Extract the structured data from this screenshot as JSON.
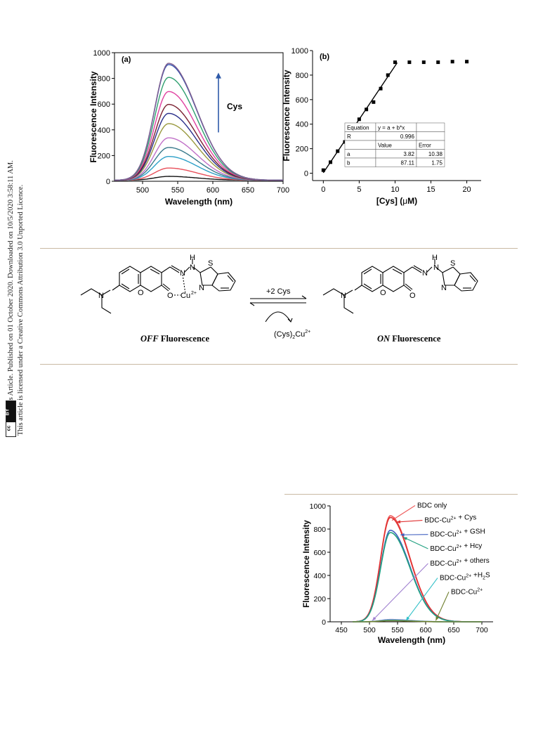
{
  "sidebar": {
    "line1": "Open Access Article. Published on 01 October 2020. Downloaded on 10/5/2020 3:58:11 AM.",
    "line2": "This article is licensed under a Creative Commons Attribution 3.0 Unported Licence.",
    "badge_cc": "cc",
    "badge_by": "BY"
  },
  "scheme": {
    "arrow_top": "+2 Cys",
    "arrow_bottom_main": "(Cys)",
    "arrow_bottom_sub": "2",
    "arrow_bottom_cu": "Cu",
    "arrow_bottom_sup": "2+",
    "off_label_em": "OFF",
    "off_label_rest": " Fluorescence",
    "on_label_em": "ON",
    "on_label_rest": " Fluorescence",
    "left_atoms": {
      "N1": "N",
      "N2": "N",
      "H": "H",
      "O1": "O",
      "O2": "O",
      "Cu": "Cu",
      "Cu_charge": "2+",
      "N3": "N",
      "S": "S",
      "Nring": "N"
    },
    "right_atoms": {
      "N1": "N",
      "N2": "N",
      "H": "H",
      "O1": "O",
      "O2": "O",
      "S": "S",
      "Nring": "N"
    }
  },
  "chart_data": [
    {
      "id": "a",
      "type": "line",
      "panel_label": "(a)",
      "xlabel": "Wavelength (nm)",
      "ylabel": "Fluorescence Intensity",
      "xlim": [
        460,
        700
      ],
      "ylim": [
        0,
        1000
      ],
      "xticks": [
        500,
        550,
        600,
        650,
        700
      ],
      "yticks": [
        0,
        200,
        400,
        600,
        800,
        1000
      ],
      "peak_nm": 537,
      "annotation": "Cys",
      "peaks": [
        30,
        95,
        185,
        255,
        330,
        440,
        520,
        590,
        690,
        800,
        900,
        910
      ],
      "colors": [
        "#111111",
        "#e8505b",
        "#2da0c8",
        "#3a7a8c",
        "#c070c8",
        "#9a9a40",
        "#2a2f8a",
        "#7a2030",
        "#e040a0",
        "#30a070",
        "#3050b0",
        "#806090"
      ]
    },
    {
      "id": "b",
      "type": "scatter",
      "panel_label": "(b)",
      "xlabel_main": "[Cys] (",
      "xlabel_mu": "μ",
      "xlabel_end": "M)",
      "ylabel": "Fluorescence Intensity",
      "xlim": [
        -1.5,
        22
      ],
      "ylim": [
        -60,
        1000
      ],
      "xticks": [
        0,
        5,
        10,
        15,
        20
      ],
      "yticks": [
        0,
        200,
        400,
        600,
        800,
        1000
      ],
      "x": [
        0,
        1,
        2,
        3,
        4,
        5,
        6,
        7,
        8,
        9,
        10,
        12,
        14,
        16,
        18,
        20
      ],
      "y": [
        25,
        90,
        180,
        255,
        340,
        440,
        520,
        580,
        690,
        800,
        905,
        905,
        905,
        905,
        910,
        910
      ],
      "fit_line": {
        "x": [
          0,
          10.3
        ]
      },
      "fit_table": {
        "rows": [
          [
            "Equation",
            "y = a + b*x",
            ""
          ],
          [
            "R",
            "0.996",
            ""
          ],
          [
            "",
            "Value",
            "Error"
          ],
          [
            "a",
            "3.82",
            "10.38"
          ],
          [
            "b",
            "87.11",
            "1.75"
          ]
        ]
      }
    },
    {
      "id": "c",
      "type": "line",
      "xlabel": "Wavelength (nm)",
      "ylabel": "Fluorescence Intensity",
      "xlim": [
        430,
        720
      ],
      "ylim": [
        0,
        1000
      ],
      "xticks": [
        450,
        500,
        550,
        600,
        650,
        700
      ],
      "yticks": [
        0,
        200,
        400,
        600,
        800,
        1000
      ],
      "series": [
        {
          "name": "BDC only",
          "peak": 915,
          "color": "#ee5a5a",
          "label_x": 585,
          "label_y": 985,
          "arrow_to": 540
        },
        {
          "name": "BDC-Cu2+ + Cys",
          "peak": 900,
          "color": "#e03030",
          "label_x": 598,
          "label_y": 857,
          "arrow_to": 548
        },
        {
          "name": "BDC-Cu2+ + GSH",
          "peak": 790,
          "color": "#4060c0",
          "label_x": 608,
          "label_y": 735,
          "arrow_to": 555
        },
        {
          "name": "BDC-Cu2+ + Hcy",
          "peak": 770,
          "color": "#20a080",
          "label_x": 608,
          "label_y": 612,
          "arrow_to": 560
        },
        {
          "name": "BDC-Cu2+ + others",
          "peak": 20,
          "color": "#a080d0",
          "label_x": 608,
          "label_y": 485,
          "arrow_to": 505
        },
        {
          "name": "BDC-Cu2+ +H2S",
          "peak": 15,
          "color": "#30c0c8",
          "label_x": 625,
          "label_y": 360,
          "arrow_to": 565
        },
        {
          "name": "BDC-Cu2+",
          "peak": 10,
          "color": "#708030",
          "label_x": 645,
          "label_y": 240,
          "arrow_to": 618
        }
      ]
    }
  ]
}
